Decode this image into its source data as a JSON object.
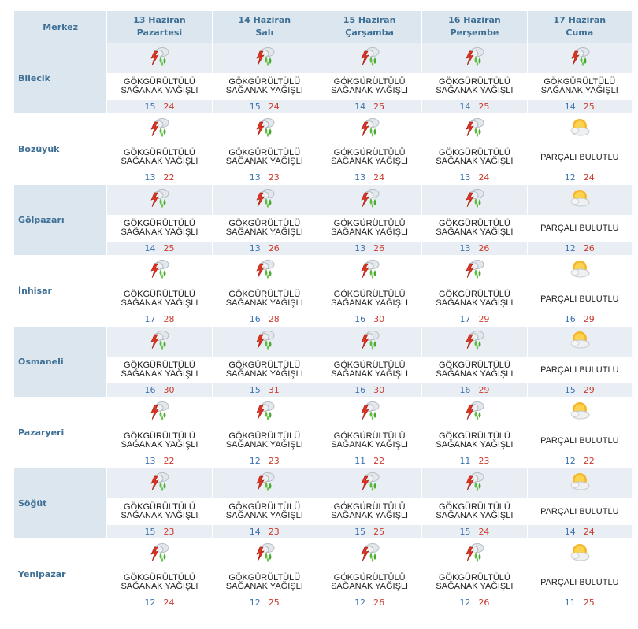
{
  "header": {
    "city_label": "Merkez",
    "days": [
      {
        "date": "13 Haziran",
        "weekday": "Pazartesi"
      },
      {
        "date": "14 Haziran",
        "weekday": "Salı"
      },
      {
        "date": "15 Haziran",
        "weekday": "Çarşamba"
      },
      {
        "date": "16 Haziran",
        "weekday": "Perşembe"
      },
      {
        "date": "17 Haziran",
        "weekday": "Cuma"
      }
    ]
  },
  "colors": {
    "header_bg": "#dbe6ef",
    "header_text": "#3e6f95",
    "min_temp": "#3c73b0",
    "max_temp": "#cc3b2d",
    "row_shade": "#e8eef3"
  },
  "rows": [
    {
      "city": "Bilecik",
      "days": [
        {
          "icon": "thunderstorm-rain-icon",
          "desc": "GÖKGÜRÜLTÜLÜ\nSAĞANAK YAĞIŞLI",
          "min": "15",
          "max": "24"
        },
        {
          "icon": "thunderstorm-rain-icon",
          "desc": "GÖKGÜRÜLTÜLÜ\nSAĞANAK YAĞIŞLI",
          "min": "15",
          "max": "24"
        },
        {
          "icon": "thunderstorm-rain-icon",
          "desc": "GÖKGÜRÜLTÜLÜ\nSAĞANAK YAĞIŞLI",
          "min": "14",
          "max": "25"
        },
        {
          "icon": "thunderstorm-rain-icon",
          "desc": "GÖKGÜRÜLTÜLÜ\nSAĞANAK YAĞIŞLI",
          "min": "14",
          "max": "25"
        },
        {
          "icon": "thunderstorm-rain-icon",
          "desc": "GÖKGÜRÜLTÜLÜ\nSAĞANAK YAĞIŞLI",
          "min": "14",
          "max": "25"
        }
      ]
    },
    {
      "city": "Bozüyük",
      "days": [
        {
          "icon": "thunderstorm-rain-icon",
          "desc": "GÖKGÜRÜLTÜLÜ\nSAĞANAK YAĞIŞLI",
          "min": "13",
          "max": "22"
        },
        {
          "icon": "thunderstorm-rain-icon",
          "desc": "GÖKGÜRÜLTÜLÜ\nSAĞANAK YAĞIŞLI",
          "min": "13",
          "max": "23"
        },
        {
          "icon": "thunderstorm-rain-icon",
          "desc": "GÖKGÜRÜLTÜLÜ\nSAĞANAK YAĞIŞLI",
          "min": "13",
          "max": "24"
        },
        {
          "icon": "thunderstorm-rain-icon",
          "desc": "GÖKGÜRÜLTÜLÜ\nSAĞANAK YAĞIŞLI",
          "min": "13",
          "max": "24"
        },
        {
          "icon": "partly-cloudy-icon",
          "desc": "PARÇALI BULUTLU",
          "min": "12",
          "max": "24"
        }
      ]
    },
    {
      "city": "Gölpazarı",
      "days": [
        {
          "icon": "thunderstorm-rain-icon",
          "desc": "GÖKGÜRÜLTÜLÜ\nSAĞANAK YAĞIŞLI",
          "min": "14",
          "max": "25"
        },
        {
          "icon": "thunderstorm-rain-icon",
          "desc": "GÖKGÜRÜLTÜLÜ\nSAĞANAK YAĞIŞLI",
          "min": "13",
          "max": "26"
        },
        {
          "icon": "thunderstorm-rain-icon",
          "desc": "GÖKGÜRÜLTÜLÜ\nSAĞANAK YAĞIŞLI",
          "min": "13",
          "max": "26"
        },
        {
          "icon": "thunderstorm-rain-icon",
          "desc": "GÖKGÜRÜLTÜLÜ\nSAĞANAK YAĞIŞLI",
          "min": "13",
          "max": "26"
        },
        {
          "icon": "partly-cloudy-icon",
          "desc": "PARÇALI BULUTLU",
          "min": "12",
          "max": "26"
        }
      ]
    },
    {
      "city": "İnhisar",
      "days": [
        {
          "icon": "thunderstorm-rain-icon",
          "desc": "GÖKGÜRÜLTÜLÜ\nSAĞANAK YAĞIŞLI",
          "min": "17",
          "max": "28"
        },
        {
          "icon": "thunderstorm-rain-icon",
          "desc": "GÖKGÜRÜLTÜLÜ\nSAĞANAK YAĞIŞLI",
          "min": "16",
          "max": "28"
        },
        {
          "icon": "thunderstorm-rain-icon",
          "desc": "GÖKGÜRÜLTÜLÜ\nSAĞANAK YAĞIŞLI",
          "min": "16",
          "max": "30"
        },
        {
          "icon": "thunderstorm-rain-icon",
          "desc": "GÖKGÜRÜLTÜLÜ\nSAĞANAK YAĞIŞLI",
          "min": "17",
          "max": "29"
        },
        {
          "icon": "partly-cloudy-icon",
          "desc": "PARÇALI BULUTLU",
          "min": "16",
          "max": "29"
        }
      ]
    },
    {
      "city": "Osmaneli",
      "days": [
        {
          "icon": "thunderstorm-rain-icon",
          "desc": "GÖKGÜRÜLTÜLÜ\nSAĞANAK YAĞIŞLI",
          "min": "16",
          "max": "30"
        },
        {
          "icon": "thunderstorm-rain-icon",
          "desc": "GÖKGÜRÜLTÜLÜ\nSAĞANAK YAĞIŞLI",
          "min": "15",
          "max": "31"
        },
        {
          "icon": "thunderstorm-rain-icon",
          "desc": "GÖKGÜRÜLTÜLÜ\nSAĞANAK YAĞIŞLI",
          "min": "16",
          "max": "30"
        },
        {
          "icon": "thunderstorm-rain-icon",
          "desc": "GÖKGÜRÜLTÜLÜ\nSAĞANAK YAĞIŞLI",
          "min": "16",
          "max": "29"
        },
        {
          "icon": "partly-cloudy-icon",
          "desc": "PARÇALI BULUTLU",
          "min": "15",
          "max": "29"
        }
      ]
    },
    {
      "city": "Pazaryeri",
      "days": [
        {
          "icon": "thunderstorm-rain-icon",
          "desc": "GÖKGÜRÜLTÜLÜ\nSAĞANAK YAĞIŞLI",
          "min": "13",
          "max": "22"
        },
        {
          "icon": "thunderstorm-rain-icon",
          "desc": "GÖKGÜRÜLTÜLÜ\nSAĞANAK YAĞIŞLI",
          "min": "12",
          "max": "23"
        },
        {
          "icon": "thunderstorm-rain-icon",
          "desc": "GÖKGÜRÜLTÜLÜ\nSAĞANAK YAĞIŞLI",
          "min": "11",
          "max": "22"
        },
        {
          "icon": "thunderstorm-rain-icon",
          "desc": "GÖKGÜRÜLTÜLÜ\nSAĞANAK YAĞIŞLI",
          "min": "11",
          "max": "23"
        },
        {
          "icon": "partly-cloudy-icon",
          "desc": "PARÇALI BULUTLU",
          "min": "12",
          "max": "22"
        }
      ]
    },
    {
      "city": "Söğüt",
      "days": [
        {
          "icon": "thunderstorm-rain-icon",
          "desc": "GÖKGÜRÜLTÜLÜ\nSAĞANAK YAĞIŞLI",
          "min": "15",
          "max": "23"
        },
        {
          "icon": "thunderstorm-rain-icon",
          "desc": "GÖKGÜRÜLTÜLÜ\nSAĞANAK YAĞIŞLI",
          "min": "14",
          "max": "23"
        },
        {
          "icon": "thunderstorm-rain-icon",
          "desc": "GÖKGÜRÜLTÜLÜ\nSAĞANAK YAĞIŞLI",
          "min": "15",
          "max": "25"
        },
        {
          "icon": "thunderstorm-rain-icon",
          "desc": "GÖKGÜRÜLTÜLÜ\nSAĞANAK YAĞIŞLI",
          "min": "15",
          "max": "24"
        },
        {
          "icon": "partly-cloudy-icon",
          "desc": "PARÇALI BULUTLU",
          "min": "14",
          "max": "24"
        }
      ]
    },
    {
      "city": "Yenipazar",
      "days": [
        {
          "icon": "thunderstorm-rain-icon",
          "desc": "GÖKGÜRÜLTÜLÜ\nSAĞANAK YAĞIŞLI",
          "min": "12",
          "max": "24"
        },
        {
          "icon": "thunderstorm-rain-icon",
          "desc": "GÖKGÜRÜLTÜLÜ\nSAĞANAK YAĞIŞLI",
          "min": "12",
          "max": "25"
        },
        {
          "icon": "thunderstorm-rain-icon",
          "desc": "GÖKGÜRÜLTÜLÜ\nSAĞANAK YAĞIŞLI",
          "min": "12",
          "max": "26"
        },
        {
          "icon": "thunderstorm-rain-icon",
          "desc": "GÖKGÜRÜLTÜLÜ\nSAĞANAK YAĞIŞLI",
          "min": "12",
          "max": "26"
        },
        {
          "icon": "partly-cloudy-icon",
          "desc": "PARÇALI BULUTLU",
          "min": "11",
          "max": "25"
        }
      ]
    }
  ]
}
